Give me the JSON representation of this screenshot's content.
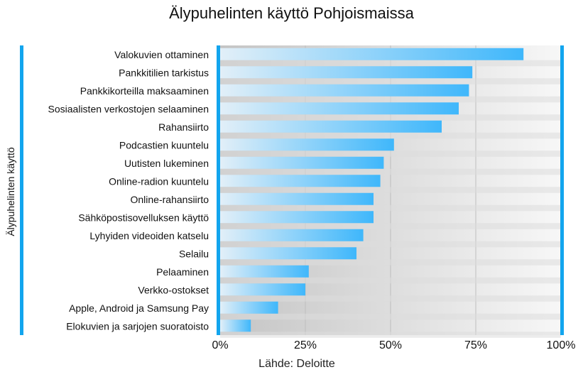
{
  "chart_data": {
    "type": "bar",
    "orientation": "horizontal",
    "title": "Älypuhelinten käyttö Pohjoismaissa",
    "ylabel": "Älypuhelinten käyttö",
    "xlabel": "",
    "source": "Lähde: Deloitte",
    "categories": [
      "Valokuvien ottaminen",
      "Pankkitilien tarkistus",
      "Pankkikorteilla maksaaminen",
      "Sosiaalisten verkostojen selaaminen",
      "Rahansiirto",
      "Podcastien kuuntelu",
      "Uutisten lukeminen",
      "Online-radion kuuntelu",
      "Online-rahansiirto",
      "Sähköpostisovelluksen käyttö",
      "Lyhyiden videoiden katselu",
      "Selailu",
      "Pelaaminen",
      "Verkko-ostokset",
      "Apple, Android ja Samsung Pay",
      "Elokuvien ja sarjojen suoratoisto"
    ],
    "values": [
      89,
      74,
      73,
      70,
      65,
      51,
      48,
      47,
      45,
      45,
      42,
      40,
      26,
      25,
      17,
      9
    ],
    "xlim": [
      0,
      100
    ],
    "xticks": [
      0,
      25,
      50,
      75,
      100
    ],
    "xtick_labels": [
      "0%",
      "25%",
      "50%",
      "75%",
      "100%"
    ],
    "grid": true,
    "colors": {
      "bar_start": "#e2eff8",
      "bar_end": "#3fb7fb",
      "accent": "#12a5ee",
      "grid": "#bdbdbd"
    }
  }
}
